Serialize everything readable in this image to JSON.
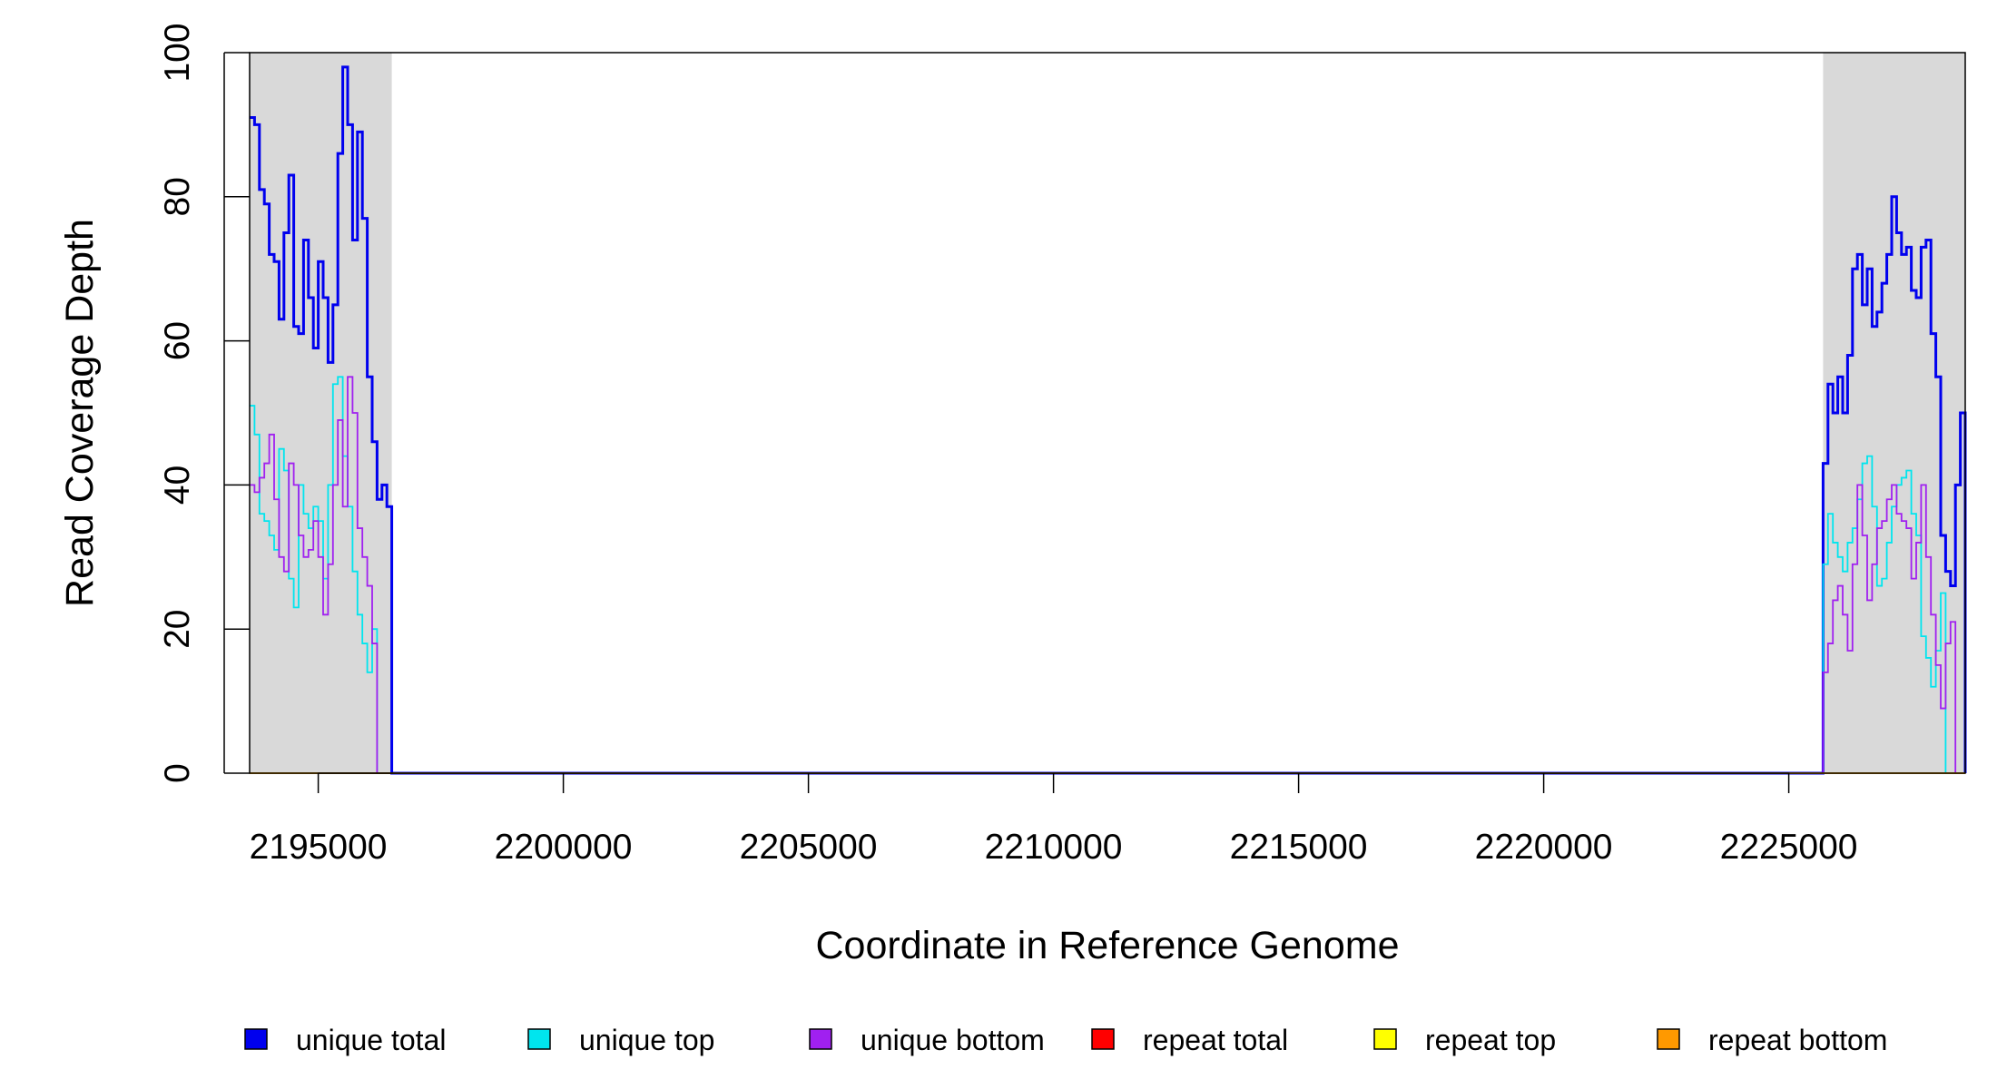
{
  "chart_data": {
    "type": "line",
    "title": "",
    "xlabel": "Coordinate in Reference Genome",
    "ylabel": "Read Coverage Depth",
    "xlim": [
      2193600,
      2228600
    ],
    "ylim": [
      0,
      100
    ],
    "x_ticks": [
      2195000,
      2200000,
      2205000,
      2210000,
      2215000,
      2220000,
      2225000
    ],
    "x_tick_labels": [
      "2195000",
      "2200000",
      "2205000",
      "2210000",
      "2215000",
      "2220000",
      "2225000"
    ],
    "y_ticks": [
      0,
      20,
      40,
      60,
      80,
      100
    ],
    "y_tick_labels": [
      "0",
      "20",
      "40",
      "60",
      "80",
      "100"
    ],
    "grid": false,
    "legend_position": "bottom",
    "shaded_regions": [
      {
        "x0": 2193600,
        "x1": 2196500
      },
      {
        "x0": 2225700,
        "x1": 2228600
      }
    ],
    "series": [
      {
        "name": "unique total",
        "color": "#0000ee",
        "x": [
          2193600,
          2193700,
          2193800,
          2193900,
          2194000,
          2194100,
          2194200,
          2194300,
          2194400,
          2194500,
          2194600,
          2194700,
          2194800,
          2194900,
          2195000,
          2195100,
          2195200,
          2195300,
          2195400,
          2195500,
          2195600,
          2195700,
          2195800,
          2195900,
          2196000,
          2196100,
          2196200,
          2196300,
          2196400,
          2196500,
          2196600,
          2225700,
          2225800,
          2225900,
          2226000,
          2226100,
          2226200,
          2226300,
          2226400,
          2226500,
          2226600,
          2226700,
          2226800,
          2226900,
          2227000,
          2227100,
          2227200,
          2227300,
          2227400,
          2227500,
          2227600,
          2227700,
          2227800,
          2227900,
          2228000,
          2228100,
          2228200,
          2228300,
          2228400,
          2228500,
          2228600
        ],
        "values": [
          91,
          90,
          81,
          79,
          72,
          71,
          63,
          75,
          83,
          62,
          61,
          74,
          66,
          59,
          71,
          66,
          57,
          65,
          86,
          98,
          90,
          74,
          89,
          77,
          55,
          46,
          38,
          40,
          37,
          0,
          0,
          43,
          54,
          50,
          55,
          50,
          58,
          70,
          72,
          65,
          70,
          62,
          64,
          68,
          72,
          80,
          75,
          72,
          73,
          67,
          66,
          73,
          74,
          61,
          55,
          33,
          28,
          26,
          40,
          50,
          0
        ]
      },
      {
        "name": "unique top",
        "color": "#00e5ee",
        "x": [
          2193600,
          2193700,
          2193800,
          2193900,
          2194000,
          2194100,
          2194200,
          2194300,
          2194400,
          2194500,
          2194600,
          2194700,
          2194800,
          2194900,
          2195000,
          2195100,
          2195200,
          2195300,
          2195400,
          2195500,
          2195600,
          2195700,
          2195800,
          2195900,
          2196000,
          2196100,
          2196200,
          2196300,
          2196400,
          2196500,
          2196600,
          2225700,
          2225800,
          2225900,
          2226000,
          2226100,
          2226200,
          2226300,
          2226400,
          2226500,
          2226600,
          2226700,
          2226800,
          2226900,
          2227000,
          2227100,
          2227200,
          2227300,
          2227400,
          2227500,
          2227600,
          2227700,
          2227800,
          2227900,
          2228000,
          2228100,
          2228200,
          2228300,
          2228400,
          2228500,
          2228600
        ],
        "values": [
          51,
          47,
          36,
          35,
          33,
          31,
          45,
          42,
          27,
          23,
          40,
          36,
          34,
          37,
          35,
          27,
          40,
          54,
          55,
          44,
          37,
          28,
          22,
          18,
          14,
          20,
          0,
          0,
          0,
          0,
          0,
          29,
          36,
          32,
          30,
          28,
          32,
          34,
          38,
          43,
          44,
          37,
          26,
          27,
          32,
          37,
          40,
          41,
          42,
          36,
          33,
          19,
          16,
          12,
          17,
          25,
          0,
          0,
          0,
          0,
          0
        ]
      },
      {
        "name": "unique bottom",
        "color": "#a020f0",
        "x": [
          2193600,
          2193700,
          2193800,
          2193900,
          2194000,
          2194100,
          2194200,
          2194300,
          2194400,
          2194500,
          2194600,
          2194700,
          2194800,
          2194900,
          2195000,
          2195100,
          2195200,
          2195300,
          2195400,
          2195500,
          2195600,
          2195700,
          2195800,
          2195900,
          2196000,
          2196100,
          2196200,
          2196300,
          2196400,
          2196500,
          2196600,
          2225700,
          2225800,
          2225900,
          2226000,
          2226100,
          2226200,
          2226300,
          2226400,
          2226500,
          2226600,
          2226700,
          2226800,
          2226900,
          2227000,
          2227100,
          2227200,
          2227300,
          2227400,
          2227500,
          2227600,
          2227700,
          2227800,
          2227900,
          2228000,
          2228100,
          2228200,
          2228300,
          2228400,
          2228500,
          2228600
        ],
        "values": [
          40,
          39,
          41,
          43,
          47,
          38,
          30,
          28,
          43,
          40,
          33,
          30,
          31,
          35,
          30,
          22,
          29,
          40,
          49,
          37,
          55,
          50,
          34,
          30,
          26,
          18,
          0,
          0,
          0,
          0,
          0,
          14,
          18,
          24,
          26,
          22,
          17,
          29,
          40,
          33,
          24,
          29,
          34,
          35,
          38,
          40,
          36,
          35,
          34,
          27,
          32,
          40,
          30,
          22,
          15,
          9,
          18,
          21,
          0,
          0,
          0
        ]
      },
      {
        "name": "repeat total",
        "color": "#ff0000",
        "x": [
          2193600,
          2228600
        ],
        "values": [
          0,
          0
        ]
      },
      {
        "name": "repeat top",
        "color": "#ffff00",
        "x": [
          2193600,
          2228600
        ],
        "values": [
          0,
          0
        ]
      },
      {
        "name": "repeat bottom",
        "color": "#ff9900",
        "x": [
          2193600,
          2228600
        ],
        "values": [
          0,
          0
        ]
      }
    ]
  }
}
